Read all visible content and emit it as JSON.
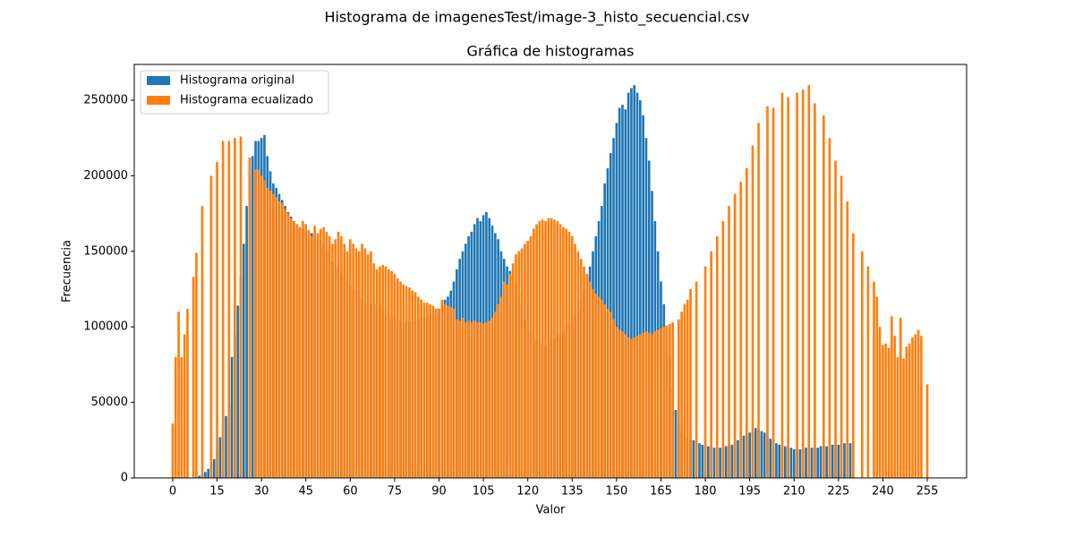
{
  "chart_data": {
    "type": "bar",
    "suptitle": "Histograma de imagenesTest/image-3_histo_secuencial.csv",
    "title": "Gráfica de histogramas",
    "x_label": "Valor",
    "y_label": "Frecuencia",
    "xlim": [
      -13,
      268.3
    ],
    "ylim": [
      0,
      273700
    ],
    "xticks": [
      0,
      15,
      30,
      45,
      60,
      75,
      90,
      105,
      120,
      135,
      150,
      165,
      180,
      195,
      210,
      225,
      240,
      255
    ],
    "yticks": [
      0,
      50000,
      100000,
      150000,
      200000,
      250000
    ],
    "legend": "upper left",
    "series": [
      {
        "name": "Histograma original",
        "color": "#1f77b4",
        "values": [
          0,
          0,
          0,
          0,
          0,
          0,
          0,
          0,
          0,
          1500,
          2500,
          4000,
          6000,
          9000,
          12500,
          19000,
          27000,
          35000,
          41000,
          48000,
          80000,
          95000,
          114000,
          133000,
          155000,
          180000,
          200000,
          213000,
          223000,
          223000,
          225000,
          227000,
          213000,
          203000,
          195000,
          192000,
          188000,
          184000,
          180000,
          176000,
          173000,
          170000,
          168000,
          166000,
          165000,
          164000,
          163000,
          162000,
          160000,
          158000,
          156000,
          155000,
          150000,
          147000,
          143000,
          140000,
          138000,
          136000,
          135000,
          130000,
          128000,
          125000,
          124000,
          120000,
          118000,
          116000,
          115000,
          115000,
          115000,
          115000,
          115000,
          113000,
          110000,
          108000,
          106000,
          105000,
          104000,
          104000,
          103000,
          103000,
          103000,
          104000,
          104000,
          105000,
          105000,
          106000,
          107000,
          108000,
          109000,
          110000,
          112000,
          115000,
          118000,
          120000,
          124000,
          130000,
          138000,
          145000,
          150000,
          155000,
          160000,
          163000,
          168000,
          172000,
          170000,
          174000,
          176000,
          172000,
          167000,
          162000,
          158000,
          150000,
          145000,
          140000,
          137000,
          133000,
          128000,
          122000,
          115000,
          105000,
          100000,
          97000,
          93000,
          91000,
          89000,
          88000,
          88000,
          89000,
          90000,
          92000,
          93000,
          95000,
          97000,
          100000,
          102000,
          105000,
          108000,
          112000,
          118000,
          125000,
          132000,
          140000,
          150000,
          160000,
          170000,
          180000,
          195000,
          205000,
          215000,
          225000,
          235000,
          245000,
          247000,
          244000,
          255000,
          258000,
          260000,
          255000,
          250000,
          240000,
          225000,
          210000,
          190000,
          170000,
          150000,
          130000,
          115000,
          100000,
          80000,
          60000,
          45000,
          35000,
          30000,
          27000,
          26000,
          25000,
          25000,
          24000,
          23000,
          22000,
          21000,
          21000,
          20000,
          20000,
          20000,
          20000,
          20000,
          21000,
          21000,
          22000,
          23000,
          25000,
          27000,
          28000,
          29000,
          30000,
          31000,
          33000,
          32000,
          31000,
          30000,
          28000,
          26000,
          25000,
          23000,
          22000,
          21000,
          21000,
          20000,
          20000,
          19000,
          19000,
          19000,
          19000,
          20000,
          20000,
          20000,
          20000,
          20000,
          21000,
          21000,
          21000,
          22000,
          22000,
          22000,
          22000,
          22000,
          23000,
          23000,
          23000,
          0,
          0,
          0,
          0,
          0,
          0,
          0,
          0,
          0,
          0,
          0,
          0,
          0,
          0,
          0,
          0,
          0,
          0,
          0,
          0,
          0,
          0,
          0,
          0,
          0,
          0
        ]
      },
      {
        "name": "Histograma ecualizado",
        "color": "#ff7f0e",
        "values": [
          36000,
          80000,
          110000,
          80000,
          95000,
          112000,
          0,
          133000,
          149000,
          0,
          180000,
          0,
          0,
          200000,
          0,
          209000,
          0,
          223000,
          0,
          223000,
          0,
          225000,
          0,
          226000,
          0,
          0,
          212000,
          0,
          204000,
          204000,
          200000,
          197000,
          192000,
          190000,
          188000,
          186000,
          183000,
          182000,
          178000,
          175000,
          172000,
          170000,
          168000,
          166000,
          170000,
          168000,
          164000,
          160000,
          167000,
          162000,
          165000,
          166000,
          163000,
          160000,
          155000,
          158000,
          163000,
          160000,
          155000,
          150000,
          158000,
          155000,
          152000,
          150000,
          155000,
          152000,
          148000,
          150000,
          142000,
          138000,
          140000,
          141000,
          140000,
          138000,
          137000,
          135000,
          132000,
          130000,
          128000,
          127000,
          126000,
          124000,
          123000,
          120000,
          118000,
          116000,
          116000,
          115000,
          114000,
          112000,
          112000,
          118000,
          115000,
          114000,
          113000,
          112000,
          105000,
          104000,
          106000,
          103000,
          104000,
          103000,
          104000,
          103000,
          103000,
          102000,
          103000,
          104000,
          106000,
          110000,
          115000,
          120000,
          130000,
          128000,
          135000,
          142000,
          148000,
          150000,
          152000,
          155000,
          157000,
          160000,
          165000,
          168000,
          170000,
          171000,
          170000,
          172000,
          172000,
          171000,
          170000,
          168000,
          166000,
          165000,
          163000,
          160000,
          155000,
          150000,
          145000,
          140000,
          135000,
          130000,
          125000,
          122000,
          120000,
          118000,
          115000,
          112000,
          110000,
          105000,
          100000,
          98000,
          97000,
          95000,
          93000,
          92000,
          93000,
          94000,
          95000,
          96000,
          97000,
          96000,
          95000,
          97000,
          98000,
          99000,
          100000,
          101000,
          102000,
          103000,
          0,
          105000,
          110000,
          115000,
          118000,
          125000,
          0,
          130000,
          0,
          0,
          140000,
          0,
          150000,
          0,
          160000,
          0,
          170000,
          0,
          180000,
          0,
          188000,
          0,
          196000,
          0,
          205000,
          0,
          220000,
          0,
          235000,
          0,
          0,
          246000,
          0,
          245000,
          0,
          0,
          255000,
          0,
          252000,
          0,
          0,
          255000,
          0,
          257000,
          0,
          260000,
          0,
          248000,
          0,
          0,
          240000,
          0,
          225000,
          0,
          210000,
          0,
          200000,
          0,
          183000,
          0,
          162000,
          0,
          0,
          150000,
          0,
          140000,
          0,
          130000,
          120000,
          100000,
          88000,
          89000,
          86000,
          107000,
          94000,
          80000,
          106000,
          79000,
          87000,
          89000,
          93000,
          95000,
          98000,
          94000,
          0,
          62000
        ]
      }
    ]
  }
}
